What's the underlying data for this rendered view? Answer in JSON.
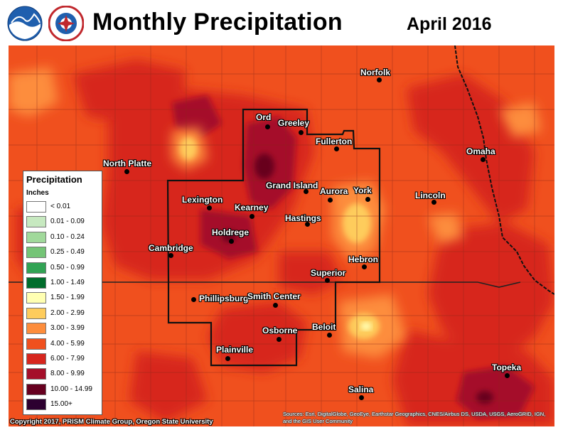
{
  "header": {
    "title": "Monthly Precipitation",
    "period": "April 2016"
  },
  "logos": [
    {
      "name": "noaa-logo",
      "text": "NOAA"
    },
    {
      "name": "nws-logo",
      "text": "NATIONAL WEATHER SERVICE"
    }
  ],
  "legend": {
    "title": "Precipitation",
    "units": "Inches",
    "items": [
      {
        "label": "< 0.01",
        "color": "#ffffff"
      },
      {
        "label": "0.01 - 0.09",
        "color": "#c7e9c0"
      },
      {
        "label": "0.10 - 0.24",
        "color": "#a1d99b"
      },
      {
        "label": "0.25 - 0.49",
        "color": "#74c476"
      },
      {
        "label": "0.50 - 0.99",
        "color": "#31a354"
      },
      {
        "label": "1.00 - 1.49",
        "color": "#006d2c"
      },
      {
        "label": "1.50 - 1.99",
        "color": "#ffffb2"
      },
      {
        "label": "2.00 - 2.99",
        "color": "#fecc5c"
      },
      {
        "label": "3.00 - 3.99",
        "color": "#fd8d3c"
      },
      {
        "label": "4.00 - 5.99",
        "color": "#f0501e"
      },
      {
        "label": "6.00 - 7.99",
        "color": "#d7261e"
      },
      {
        "label": "8.00 - 9.99",
        "color": "#a50f2a"
      },
      {
        "label": "10.00 - 14.99",
        "color": "#67001f"
      },
      {
        "label": "15.00+",
        "color": "#2d0030"
      }
    ]
  },
  "cities": [
    {
      "name": "Norfolk"
    },
    {
      "name": "Ord"
    },
    {
      "name": "Greeley"
    },
    {
      "name": "Fullerton"
    },
    {
      "name": "North Platte"
    },
    {
      "name": "Omaha"
    },
    {
      "name": "Grand Island"
    },
    {
      "name": "Aurora"
    },
    {
      "name": "York"
    },
    {
      "name": "Lexington"
    },
    {
      "name": "Lincoln"
    },
    {
      "name": "Kearney"
    },
    {
      "name": "Hastings"
    },
    {
      "name": "Holdrege"
    },
    {
      "name": "Cambridge"
    },
    {
      "name": "Hebron"
    },
    {
      "name": "Superior"
    },
    {
      "name": "Phillipsburg"
    },
    {
      "name": "Smith Center"
    },
    {
      "name": "Beloit"
    },
    {
      "name": "Osborne"
    },
    {
      "name": "Plainville"
    },
    {
      "name": "Topeka"
    },
    {
      "name": "Salina"
    }
  ],
  "credit": "Copyright 2017, PRISM Climate Group, Oregon State University",
  "sources": "Sources: Esri, DigitalGlobe, GeoEye, Earthstar Geographics, CNES/Airbus DS, USDA, USGS, AeroGRID, IGN, and the GIS User Community"
}
